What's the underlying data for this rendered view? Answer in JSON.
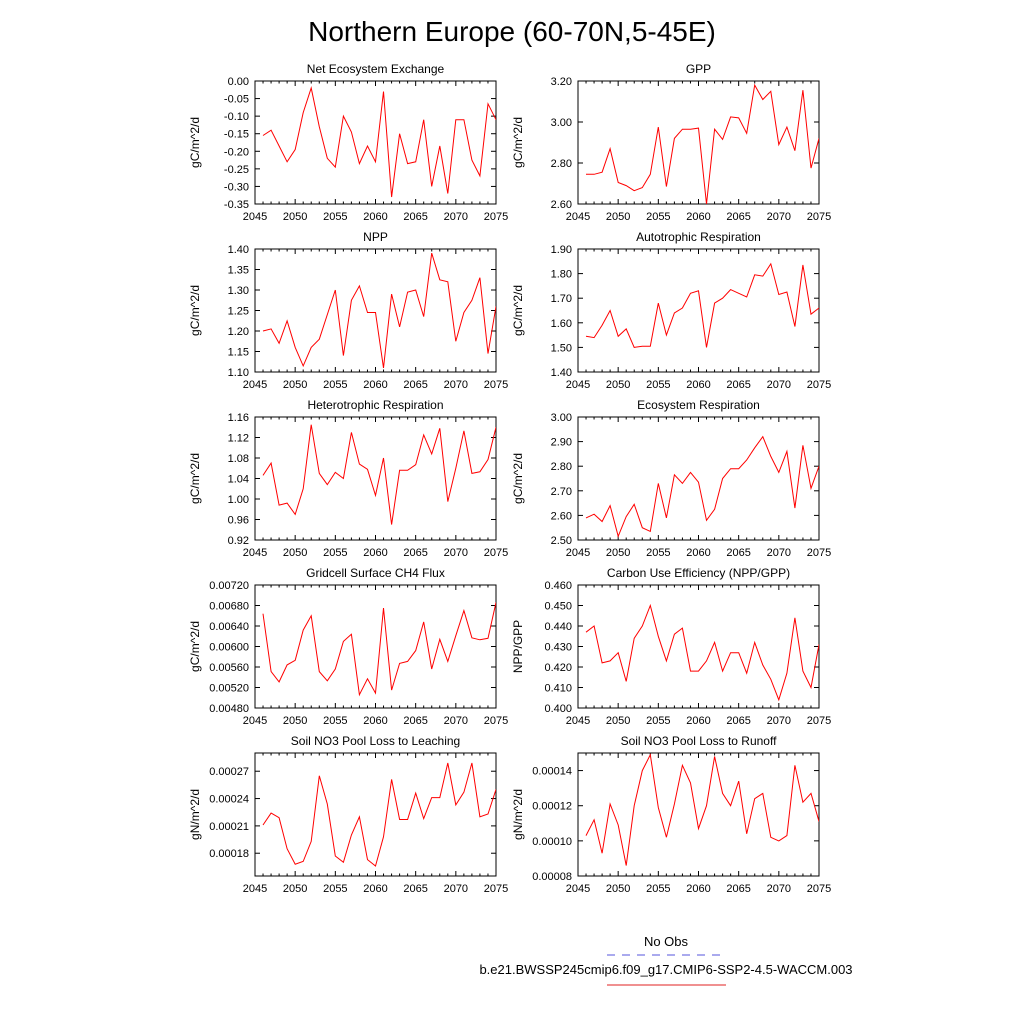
{
  "figure": {
    "title": "Northern Europe (60-70N,5-45E)",
    "legend": {
      "entries": [
        {
          "label": "No Obs",
          "color": "#5555dd",
          "dashed": true
        },
        {
          "label": "b.e21.BWSSP245cmip6.f09_g17.CMIP6-SSP2-4.5-WACCM.003",
          "color": "#e02020",
          "dashed": false
        }
      ]
    },
    "series_color": "#ff0000"
  },
  "chart_data": [
    {
      "type": "line",
      "title": "Net Ecosystem Exchange",
      "ylabel": "gC/m^2/d",
      "xlim": [
        2045,
        2075
      ],
      "ylim": [
        -0.35,
        0.0
      ],
      "xticks": [
        2045,
        2050,
        2055,
        2060,
        2065,
        2070,
        2075
      ],
      "yticks": [
        "0.00",
        "-0.05",
        "-0.10",
        "-0.15",
        "-0.20",
        "-0.25",
        "-0.30",
        "-0.35"
      ],
      "x": [
        2046,
        2047,
        2048,
        2049,
        2050,
        2051,
        2052,
        2053,
        2054,
        2055,
        2056,
        2057,
        2058,
        2059,
        2060,
        2061,
        2062,
        2063,
        2064,
        2065,
        2066,
        2067,
        2068,
        2069,
        2070,
        2071,
        2072,
        2073,
        2074,
        2075
      ],
      "values": [
        -0.155,
        -0.14,
        -0.185,
        -0.23,
        -0.195,
        -0.09,
        -0.02,
        -0.13,
        -0.22,
        -0.245,
        -0.1,
        -0.145,
        -0.235,
        -0.185,
        -0.23,
        -0.03,
        -0.33,
        -0.15,
        -0.235,
        -0.23,
        -0.11,
        -0.3,
        -0.185,
        -0.32,
        -0.11,
        -0.11,
        -0.225,
        -0.27,
        -0.065,
        -0.11
      ]
    },
    {
      "type": "line",
      "title": "GPP",
      "ylabel": "gC/m^2/d",
      "xlim": [
        2045,
        2075
      ],
      "ylim": [
        2.6,
        3.2
      ],
      "xticks": [
        2045,
        2050,
        2055,
        2060,
        2065,
        2070,
        2075
      ],
      "yticks": [
        "2.60",
        "2.80",
        "3.00",
        "3.20"
      ],
      "x": [
        2046,
        2047,
        2048,
        2049,
        2050,
        2051,
        2052,
        2053,
        2054,
        2055,
        2056,
        2057,
        2058,
        2059,
        2060,
        2061,
        2062,
        2063,
        2064,
        2065,
        2066,
        2067,
        2068,
        2069,
        2070,
        2071,
        2072,
        2073,
        2074,
        2075
      ],
      "values": [
        2.745,
        2.745,
        2.755,
        2.87,
        2.705,
        2.69,
        2.665,
        2.68,
        2.745,
        2.975,
        2.685,
        2.92,
        2.965,
        2.965,
        2.97,
        2.6,
        2.965,
        2.915,
        3.025,
        3.02,
        2.945,
        3.18,
        3.11,
        3.15,
        2.89,
        2.975,
        2.86,
        3.155,
        2.775,
        2.92
      ]
    },
    {
      "type": "line",
      "title": "NPP",
      "ylabel": "gC/m^2/d",
      "xlim": [
        2045,
        2075
      ],
      "ylim": [
        1.1,
        1.4
      ],
      "xticks": [
        2045,
        2050,
        2055,
        2060,
        2065,
        2070,
        2075
      ],
      "yticks": [
        "1.10",
        "1.15",
        "1.20",
        "1.25",
        "1.30",
        "1.35",
        "1.40"
      ],
      "x": [
        2046,
        2047,
        2048,
        2049,
        2050,
        2051,
        2052,
        2053,
        2054,
        2055,
        2056,
        2057,
        2058,
        2059,
        2060,
        2061,
        2062,
        2063,
        2064,
        2065,
        2066,
        2067,
        2068,
        2069,
        2070,
        2071,
        2072,
        2073,
        2074,
        2075
      ],
      "values": [
        1.2,
        1.205,
        1.17,
        1.225,
        1.16,
        1.115,
        1.16,
        1.18,
        1.24,
        1.3,
        1.14,
        1.275,
        1.31,
        1.245,
        1.245,
        1.11,
        1.29,
        1.21,
        1.295,
        1.3,
        1.235,
        1.39,
        1.325,
        1.32,
        1.175,
        1.245,
        1.275,
        1.33,
        1.145,
        1.26
      ]
    },
    {
      "type": "line",
      "title": "Autotrophic Respiration",
      "ylabel": "gC/m^2/d",
      "xlim": [
        2045,
        2075
      ],
      "ylim": [
        1.4,
        1.9
      ],
      "xticks": [
        2045,
        2050,
        2055,
        2060,
        2065,
        2070,
        2075
      ],
      "yticks": [
        "1.40",
        "1.50",
        "1.60",
        "1.70",
        "1.80",
        "1.90"
      ],
      "x": [
        2046,
        2047,
        2048,
        2049,
        2050,
        2051,
        2052,
        2053,
        2054,
        2055,
        2056,
        2057,
        2058,
        2059,
        2060,
        2061,
        2062,
        2063,
        2064,
        2065,
        2066,
        2067,
        2068,
        2069,
        2070,
        2071,
        2072,
        2073,
        2074,
        2075
      ],
      "values": [
        1.545,
        1.54,
        1.59,
        1.65,
        1.545,
        1.575,
        1.5,
        1.505,
        1.505,
        1.68,
        1.55,
        1.64,
        1.66,
        1.72,
        1.73,
        1.5,
        1.68,
        1.7,
        1.735,
        1.72,
        1.705,
        1.795,
        1.79,
        1.84,
        1.715,
        1.725,
        1.585,
        1.835,
        1.635,
        1.66
      ]
    },
    {
      "type": "line",
      "title": "Heterotrophic Respiration",
      "ylabel": "gC/m^2/d",
      "xlim": [
        2045,
        2075
      ],
      "ylim": [
        0.92,
        1.16
      ],
      "xticks": [
        2045,
        2050,
        2055,
        2060,
        2065,
        2070,
        2075
      ],
      "yticks": [
        "0.92",
        "0.96",
        "1.00",
        "1.04",
        "1.08",
        "1.12",
        "1.16"
      ],
      "x": [
        2046,
        2047,
        2048,
        2049,
        2050,
        2051,
        2052,
        2053,
        2054,
        2055,
        2056,
        2057,
        2058,
        2059,
        2060,
        2061,
        2062,
        2063,
        2064,
        2065,
        2066,
        2067,
        2068,
        2069,
        2070,
        2071,
        2072,
        2073,
        2074,
        2075
      ],
      "values": [
        1.046,
        1.07,
        0.988,
        0.992,
        0.97,
        1.02,
        1.145,
        1.05,
        1.028,
        1.052,
        1.04,
        1.13,
        1.068,
        1.058,
        1.007,
        1.08,
        0.95,
        1.056,
        1.056,
        1.067,
        1.125,
        1.088,
        1.138,
        0.995,
        1.06,
        1.133,
        1.05,
        1.053,
        1.077,
        1.14
      ]
    },
    {
      "type": "line",
      "title": "Ecosystem Respiration",
      "ylabel": "gC/m^2/d",
      "xlim": [
        2045,
        2075
      ],
      "ylim": [
        2.5,
        3.0
      ],
      "xticks": [
        2045,
        2050,
        2055,
        2060,
        2065,
        2070,
        2075
      ],
      "yticks": [
        "2.50",
        "2.60",
        "2.70",
        "2.80",
        "2.90",
        "3.00"
      ],
      "x": [
        2046,
        2047,
        2048,
        2049,
        2050,
        2051,
        2052,
        2053,
        2054,
        2055,
        2056,
        2057,
        2058,
        2059,
        2060,
        2061,
        2062,
        2063,
        2064,
        2065,
        2066,
        2067,
        2068,
        2069,
        2070,
        2071,
        2072,
        2073,
        2074,
        2075
      ],
      "values": [
        2.59,
        2.605,
        2.575,
        2.64,
        2.515,
        2.595,
        2.645,
        2.55,
        2.535,
        2.73,
        2.59,
        2.765,
        2.73,
        2.775,
        2.735,
        2.58,
        2.625,
        2.75,
        2.79,
        2.79,
        2.825,
        2.875,
        2.92,
        2.84,
        2.775,
        2.86,
        2.63,
        2.885,
        2.71,
        2.8
      ]
    },
    {
      "type": "line",
      "title": "Gridcell Surface CH4 Flux",
      "ylabel": "gC/m^2/d",
      "xlim": [
        2045,
        2075
      ],
      "ylim": [
        0.0048,
        0.0072
      ],
      "xticks": [
        2045,
        2050,
        2055,
        2060,
        2065,
        2070,
        2075
      ],
      "yticks": [
        "0.00480",
        "0.00520",
        "0.00560",
        "0.00600",
        "0.00640",
        "0.00680",
        "0.00720"
      ],
      "x": [
        2046,
        2047,
        2048,
        2049,
        2050,
        2051,
        2052,
        2053,
        2054,
        2055,
        2056,
        2057,
        2058,
        2059,
        2060,
        2061,
        2062,
        2063,
        2064,
        2065,
        2066,
        2067,
        2068,
        2069,
        2070,
        2071,
        2072,
        2073,
        2074,
        2075
      ],
      "values": [
        0.00664,
        0.00551,
        0.00531,
        0.00564,
        0.00573,
        0.00632,
        0.0066,
        0.00551,
        0.00533,
        0.00556,
        0.0061,
        0.00624,
        0.00506,
        0.00537,
        0.00509,
        0.00675,
        0.00515,
        0.00567,
        0.00571,
        0.00592,
        0.00648,
        0.00556,
        0.00614,
        0.00571,
        0.00621,
        0.0067,
        0.00617,
        0.00613,
        0.00616,
        0.00686
      ]
    },
    {
      "type": "line",
      "title": "Carbon Use Efficiency (NPP/GPP)",
      "ylabel": "NPP/GPP",
      "xlim": [
        2045,
        2075
      ],
      "ylim": [
        0.4,
        0.46
      ],
      "xticks": [
        2045,
        2050,
        2055,
        2060,
        2065,
        2070,
        2075
      ],
      "yticks": [
        "0.400",
        "0.410",
        "0.420",
        "0.430",
        "0.440",
        "0.450",
        "0.460"
      ],
      "x": [
        2046,
        2047,
        2048,
        2049,
        2050,
        2051,
        2052,
        2053,
        2054,
        2055,
        2056,
        2057,
        2058,
        2059,
        2060,
        2061,
        2062,
        2063,
        2064,
        2065,
        2066,
        2067,
        2068,
        2069,
        2070,
        2071,
        2072,
        2073,
        2074,
        2075
      ],
      "values": [
        0.437,
        0.44,
        0.422,
        0.423,
        0.427,
        0.413,
        0.434,
        0.44,
        0.45,
        0.435,
        0.423,
        0.436,
        0.439,
        0.418,
        0.418,
        0.423,
        0.432,
        0.418,
        0.427,
        0.427,
        0.417,
        0.432,
        0.421,
        0.414,
        0.404,
        0.417,
        0.444,
        0.418,
        0.41,
        0.431
      ]
    },
    {
      "type": "line",
      "title": "Soil NO3 Pool Loss to Leaching",
      "ylabel": "gN/m^2/d",
      "xlim": [
        2045,
        2075
      ],
      "ylim": [
        0.000155,
        0.00029
      ],
      "xticks": [
        2045,
        2050,
        2055,
        2060,
        2065,
        2070,
        2075
      ],
      "yticks": [
        "0.00018",
        "0.00021",
        "0.00024",
        "0.00027"
      ],
      "yticks_values": [
        0.00018,
        0.00021,
        0.00024,
        0.00027
      ],
      "x": [
        2046,
        2047,
        2048,
        2049,
        2050,
        2051,
        2052,
        2053,
        2054,
        2055,
        2056,
        2057,
        2058,
        2059,
        2060,
        2061,
        2062,
        2063,
        2064,
        2065,
        2066,
        2067,
        2068,
        2069,
        2070,
        2071,
        2072,
        2073,
        2074,
        2075
      ],
      "values": [
        0.000211,
        0.000224,
        0.000219,
        0.000185,
        0.000168,
        0.000171,
        0.000193,
        0.000265,
        0.000234,
        0.000177,
        0.00017,
        0.0002,
        0.00022,
        0.000173,
        0.000166,
        0.000198,
        0.000261,
        0.000217,
        0.000217,
        0.000246,
        0.000218,
        0.000241,
        0.000241,
        0.000279,
        0.000233,
        0.000247,
        0.000279,
        0.00022,
        0.000223,
        0.00025
      ]
    },
    {
      "type": "line",
      "title": "Soil NO3 Pool Loss to Runoff",
      "ylabel": "gN/m^2/d",
      "xlim": [
        2045,
        2075
      ],
      "ylim": [
        8e-05,
        0.00015
      ],
      "xticks": [
        2045,
        2050,
        2055,
        2060,
        2065,
        2070,
        2075
      ],
      "yticks": [
        "0.00008",
        "0.00010",
        "0.00012",
        "0.00014"
      ],
      "yticks_values": [
        8e-05,
        0.0001,
        0.00012,
        0.00014
      ],
      "x": [
        2046,
        2047,
        2048,
        2049,
        2050,
        2051,
        2052,
        2053,
        2054,
        2055,
        2056,
        2057,
        2058,
        2059,
        2060,
        2061,
        2062,
        2063,
        2064,
        2065,
        2066,
        2067,
        2068,
        2069,
        2070,
        2071,
        2072,
        2073,
        2074,
        2075
      ],
      "values": [
        0.000103,
        0.000112,
        9.3e-05,
        0.000121,
        0.000109,
        8.6e-05,
        0.00012,
        0.00014,
        0.000149,
        0.000119,
        0.000102,
        0.000121,
        0.000143,
        0.000133,
        0.000107,
        0.00012,
        0.000148,
        0.000127,
        0.00012,
        0.000134,
        0.000104,
        0.000124,
        0.000127,
        0.000102,
        0.0001,
        0.000103,
        0.000143,
        0.000122,
        0.000127,
        0.000111
      ]
    }
  ]
}
